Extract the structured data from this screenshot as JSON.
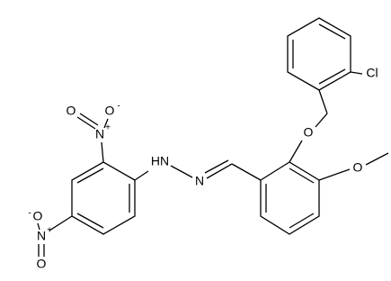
{
  "atoms": [
    {
      "label": "Cl"
    },
    {
      "label": "O"
    },
    {
      "label": "O"
    },
    {
      "label": "HN"
    },
    {
      "label": "N"
    },
    {
      "label": "N",
      "charge": "+"
    },
    {
      "label": "O"
    },
    {
      "label": "O",
      "charge": "-"
    },
    {
      "label": "N",
      "charge": "+"
    },
    {
      "label": "O",
      "charge": "-"
    },
    {
      "label": "O"
    }
  ]
}
